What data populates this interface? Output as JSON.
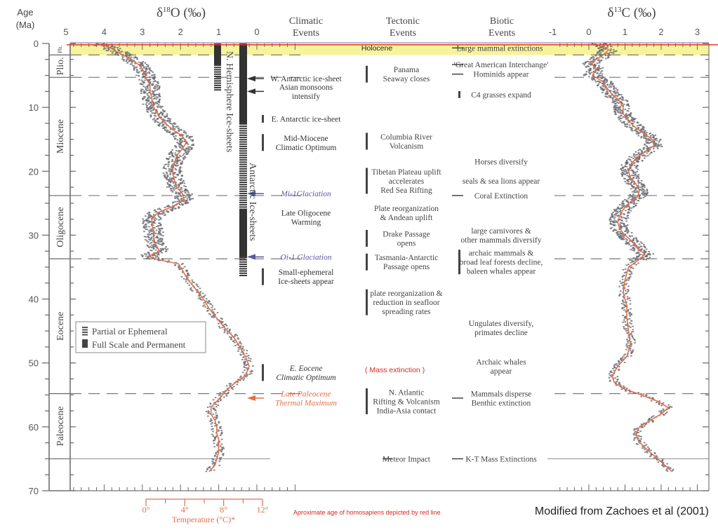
{
  "chart_data": {
    "type": "line",
    "title": "",
    "y_axis": {
      "label_line1": "Age",
      "label_line2": "(Ma)",
      "range": [
        0,
        70
      ],
      "ticks": [
        "0",
        "10",
        "20",
        "30",
        "40",
        "50",
        "60",
        "70"
      ],
      "tick_values": [
        0,
        10,
        20,
        30,
        40,
        50,
        60,
        70
      ]
    },
    "epochs": [
      {
        "name": "Plt.",
        "start": 0,
        "end": 1.8
      },
      {
        "name": "Plio.",
        "start": 1.8,
        "end": 5.3
      },
      {
        "name": "Miocene",
        "start": 5.3,
        "end": 23.8
      },
      {
        "name": "Oligocene",
        "start": 23.8,
        "end": 33.7
      },
      {
        "name": "Eocene",
        "start": 33.7,
        "end": 54.8
      },
      {
        "name": "Paleocene",
        "start": 54.8,
        "end": 65
      },
      {
        "name": "",
        "start": 65,
        "end": 70
      }
    ],
    "boundaries_dashed": [
      1.8,
      5.3,
      23.8,
      33.7,
      54.8
    ],
    "boundary_solid": 65,
    "holocene": {
      "label": "Holocene",
      "color": "#f3ef7a"
    },
    "d18O": {
      "title": "δ18O (‰)",
      "title_main": "δ",
      "title_sup": "18",
      "title_rest": "O (‰)",
      "range": [
        5,
        0
      ],
      "ticks": [
        "5",
        "4",
        "3",
        "2",
        "1",
        "0"
      ],
      "tick_values": [
        5,
        4,
        3,
        2,
        1,
        0
      ],
      "smoothed": [
        {
          "age": 0,
          "v": 4.2
        },
        {
          "age": 0.5,
          "v": 3.9
        },
        {
          "age": 1.5,
          "v": 3.6
        },
        {
          "age": 2.5,
          "v": 3.3
        },
        {
          "age": 3.5,
          "v": 3.05
        },
        {
          "age": 4.5,
          "v": 2.95
        },
        {
          "age": 5.5,
          "v": 2.9
        },
        {
          "age": 6.5,
          "v": 2.8
        },
        {
          "age": 7.5,
          "v": 2.8
        },
        {
          "age": 8.5,
          "v": 2.75
        },
        {
          "age": 9.5,
          "v": 2.75
        },
        {
          "age": 10.5,
          "v": 2.65
        },
        {
          "age": 11.5,
          "v": 2.55
        },
        {
          "age": 12.5,
          "v": 2.4
        },
        {
          "age": 13.5,
          "v": 2.2
        },
        {
          "age": 14.5,
          "v": 1.95
        },
        {
          "age": 15.5,
          "v": 1.85
        },
        {
          "age": 16.5,
          "v": 1.95
        },
        {
          "age": 17.5,
          "v": 2.1
        },
        {
          "age": 18.5,
          "v": 2.15
        },
        {
          "age": 19.5,
          "v": 2.2
        },
        {
          "age": 20.5,
          "v": 2.2
        },
        {
          "age": 21.5,
          "v": 2.15
        },
        {
          "age": 22.5,
          "v": 2.1
        },
        {
          "age": 23.5,
          "v": 1.95
        },
        {
          "age": 24.5,
          "v": 1.9
        },
        {
          "age": 25.5,
          "v": 2.2
        },
        {
          "age": 26.5,
          "v": 2.6
        },
        {
          "age": 27.5,
          "v": 2.75
        },
        {
          "age": 28.5,
          "v": 2.75
        },
        {
          "age": 29.5,
          "v": 2.7
        },
        {
          "age": 30.5,
          "v": 2.7
        },
        {
          "age": 31.5,
          "v": 2.65
        },
        {
          "age": 32.5,
          "v": 2.55
        },
        {
          "age": 33.3,
          "v": 2.85
        },
        {
          "age": 33.8,
          "v": 2.6
        },
        {
          "age": 34.5,
          "v": 2.05
        },
        {
          "age": 35.5,
          "v": 1.95
        },
        {
          "age": 37,
          "v": 1.8
        },
        {
          "age": 38.5,
          "v": 1.6
        },
        {
          "age": 40,
          "v": 1.4
        },
        {
          "age": 41.5,
          "v": 1.25
        },
        {
          "age": 43,
          "v": 1.05
        },
        {
          "age": 44.5,
          "v": 0.85
        },
        {
          "age": 46,
          "v": 0.6
        },
        {
          "age": 47.5,
          "v": 0.45
        },
        {
          "age": 49,
          "v": 0.3
        },
        {
          "age": 50.5,
          "v": 0.2
        },
        {
          "age": 52,
          "v": 0.3
        },
        {
          "age": 53,
          "v": 0.55
        },
        {
          "age": 54,
          "v": 0.75
        },
        {
          "age": 55,
          "v": 0.9
        },
        {
          "age": 56,
          "v": 1.05
        },
        {
          "age": 57,
          "v": 1.2
        },
        {
          "age": 58,
          "v": 1.2
        },
        {
          "age": 59,
          "v": 1.1
        },
        {
          "age": 60,
          "v": 1.05
        },
        {
          "age": 61,
          "v": 1.05
        },
        {
          "age": 62,
          "v": 1.0
        },
        {
          "age": 63,
          "v": 1.0
        },
        {
          "age": 64,
          "v": 1.0
        },
        {
          "age": 65,
          "v": 1.05
        },
        {
          "age": 66,
          "v": 1.1
        },
        {
          "age": 67,
          "v": 1.25
        }
      ],
      "scatter_spread": 0.25
    },
    "temperature_axis": {
      "label": "Temperature (°C)*",
      "ticks": [
        "0°",
        "4°",
        "8°",
        "12°"
      ],
      "tick_values": [
        0,
        4,
        8,
        12
      ],
      "color": "#e0704a"
    },
    "d13C": {
      "title_main": "δ",
      "title_sup": "13",
      "title_rest": "C (‰)",
      "range": [
        -1,
        3
      ],
      "ticks": [
        "-1",
        "0",
        "1",
        "2",
        "3"
      ],
      "tick_values": [
        -1,
        0,
        1,
        2,
        3
      ],
      "smoothed": [
        {
          "age": 0,
          "v": 0.3
        },
        {
          "age": 1,
          "v": 0.55
        },
        {
          "age": 2,
          "v": 0.35
        },
        {
          "age": 3,
          "v": 0.05
        },
        {
          "age": 4,
          "v": 0.2
        },
        {
          "age": 5,
          "v": 0.1
        },
        {
          "age": 6,
          "v": 0.4
        },
        {
          "age": 7,
          "v": 0.5
        },
        {
          "age": 8,
          "v": 0.65
        },
        {
          "age": 9,
          "v": 0.85
        },
        {
          "age": 10,
          "v": 0.95
        },
        {
          "age": 11,
          "v": 0.95
        },
        {
          "age": 12,
          "v": 1.1
        },
        {
          "age": 13,
          "v": 1.25
        },
        {
          "age": 14,
          "v": 1.5
        },
        {
          "age": 15,
          "v": 1.75
        },
        {
          "age": 16,
          "v": 1.8
        },
        {
          "age": 17,
          "v": 1.55
        },
        {
          "age": 18,
          "v": 1.3
        },
        {
          "age": 19,
          "v": 1.15
        },
        {
          "age": 20,
          "v": 1.1
        },
        {
          "age": 21,
          "v": 1.15
        },
        {
          "age": 22,
          "v": 1.3
        },
        {
          "age": 23,
          "v": 1.4
        },
        {
          "age": 24,
          "v": 1.35
        },
        {
          "age": 25,
          "v": 1.1
        },
        {
          "age": 26,
          "v": 0.95
        },
        {
          "age": 27,
          "v": 0.85
        },
        {
          "age": 28,
          "v": 0.8
        },
        {
          "age": 29,
          "v": 0.85
        },
        {
          "age": 30,
          "v": 1.0
        },
        {
          "age": 31,
          "v": 1.2
        },
        {
          "age": 32,
          "v": 1.35
        },
        {
          "age": 33,
          "v": 1.55
        },
        {
          "age": 34,
          "v": 1.35
        },
        {
          "age": 35,
          "v": 1.1
        },
        {
          "age": 37,
          "v": 1.0
        },
        {
          "age": 39,
          "v": 0.95
        },
        {
          "age": 41,
          "v": 1.05
        },
        {
          "age": 43,
          "v": 1.05
        },
        {
          "age": 45,
          "v": 1.1
        },
        {
          "age": 47,
          "v": 1.15
        },
        {
          "age": 49,
          "v": 1.05
        },
        {
          "age": 50.5,
          "v": 0.8
        },
        {
          "age": 52,
          "v": 0.65
        },
        {
          "age": 53,
          "v": 0.7
        },
        {
          "age": 54,
          "v": 0.95
        },
        {
          "age": 55,
          "v": 1.45
        },
        {
          "age": 56,
          "v": 1.9
        },
        {
          "age": 57,
          "v": 2.2
        },
        {
          "age": 58,
          "v": 2.0
        },
        {
          "age": 59,
          "v": 1.7
        },
        {
          "age": 60,
          "v": 1.4
        },
        {
          "age": 61,
          "v": 1.3
        },
        {
          "age": 62,
          "v": 1.35
        },
        {
          "age": 63,
          "v": 1.5
        },
        {
          "age": 64,
          "v": 1.7
        },
        {
          "age": 65,
          "v": 1.9
        },
        {
          "age": 66,
          "v": 2.1
        },
        {
          "age": 67,
          "v": 2.3
        }
      ],
      "scatter_spread": 0.25
    },
    "ice_sheets": {
      "n_hemisphere": {
        "label": "N. Hemisphere Ice-sheets",
        "full": [
          [
            0,
            3.3
          ]
        ],
        "partial": [
          [
            3.3,
            7.5
          ]
        ]
      },
      "antarctic": {
        "label": "Antarctic Ice-sheets",
        "full": [
          [
            0,
            12.5
          ],
          [
            26,
            33.4
          ]
        ],
        "partial": [
          [
            12.5,
            26
          ],
          [
            33.4,
            36.5
          ]
        ]
      }
    },
    "legend": {
      "partial": "Partial or Ephemeral",
      "full": "Full Scale and Permanent",
      "position": "left-middle"
    },
    "column_headers": {
      "climatic": [
        "Climatic",
        "Events"
      ],
      "tectonic": [
        "Tectonic",
        "Events"
      ],
      "biotic": [
        "Biotic",
        "Events"
      ]
    },
    "climatic_events": [
      {
        "lines": [
          "W. Antarctic ice-sheet"
        ],
        "age": 5.5,
        "marker": "arrow",
        "color": "#333333",
        "style": "normal"
      },
      {
        "lines": [
          "Asian monsoons",
          "intensify"
        ],
        "age": 7.5,
        "marker": "arrow",
        "color": "#333333",
        "style": "normal"
      },
      {
        "lines": [
          "E. Antarctic ice-sheet"
        ],
        "age": 11.8,
        "marker": "bar",
        "color": "#333333",
        "style": "normal"
      },
      {
        "lines": [
          "Mid-Miocene",
          "Climatic Optimum"
        ],
        "age": 15.5,
        "marker": "bar",
        "color": "#333333",
        "style": "normal"
      },
      {
        "lines": [
          "Mi-1Glaciation"
        ],
        "age": 23.5,
        "marker": "arrow",
        "color": "#5a5a9e",
        "style": "italic"
      },
      {
        "lines": [
          "Late Oligocene",
          "Warming"
        ],
        "age": 27.2,
        "marker": "none",
        "color": "#333333",
        "style": "normal"
      },
      {
        "lines": [
          "Oi-1 Glaciation"
        ],
        "age": 33.4,
        "marker": "arrow",
        "color": "#5a5a9e",
        "style": "italic"
      },
      {
        "lines": [
          "Small-ephemeral",
          "Ice-sheets appear"
        ],
        "age": 36.5,
        "marker": "bar",
        "color": "#333333",
        "style": "normal"
      },
      {
        "lines": [
          "E. Eocene",
          "Climatic Optimum"
        ],
        "age": 51.5,
        "marker": "bar",
        "color": "#333333",
        "style": "italic"
      },
      {
        "lines": [
          "Late Paleocene",
          "Thermal Maximum"
        ],
        "age": 55.5,
        "marker": "arrow",
        "color": "#e0704a",
        "style": "italic"
      }
    ],
    "tectonic_events": [
      {
        "lines": [
          "Panama",
          "Seaway closes"
        ],
        "age": 4.8,
        "marker": "bar"
      },
      {
        "lines": [
          "Columbia River",
          "Volcanism"
        ],
        "age": 15.3,
        "marker": "bar"
      },
      {
        "lines": [
          "Tibetan Plateau uplift",
          "accelerates",
          "Red Sea Rifting"
        ],
        "age": 21.5,
        "marker": "bar"
      },
      {
        "lines": [
          "Plate reorganization",
          "& Andean uplift"
        ],
        "age": 26.5,
        "marker": "none"
      },
      {
        "lines": [
          "Drake Passage",
          "opens"
        ],
        "age": 30.5,
        "marker": "bar"
      },
      {
        "lines": [
          "Tasmania-Antarctic",
          "Passage opens"
        ],
        "age": 34.2,
        "marker": "bar"
      },
      {
        "lines": [
          "plate reorganization &",
          "reduction in seafloor",
          "spreading rates"
        ],
        "age": 40.5,
        "marker": "bar"
      },
      {
        "lines": [
          "N. Atlantic",
          "Rifting & Volcanism",
          "India-Asia contact"
        ],
        "age": 56.0,
        "marker": "bar"
      },
      {
        "lines": [
          "Meteor Impact"
        ],
        "age": 65.0,
        "marker": "dash"
      }
    ],
    "mass_extinction_note": {
      "text": "( Mass extinction )",
      "color": "#d62a1e"
    },
    "biotic_events": [
      {
        "lines": [
          "Large mammal extinctions"
        ],
        "age": 0.7,
        "marker": "dash"
      },
      {
        "lines": [
          "'Great American Interchange'"
        ],
        "age": 3.3,
        "marker": "dash"
      },
      {
        "lines": [
          "Hominids appear"
        ],
        "age": 4.8,
        "marker": "dash"
      },
      {
        "lines": [
          "C4 grasses expand"
        ],
        "age": 8.0,
        "marker": "bar"
      },
      {
        "lines": [
          "Horses diversify"
        ],
        "age": 18.5,
        "marker": "none"
      },
      {
        "lines": [
          "seals & sea lions appear"
        ],
        "age": 21.5,
        "marker": "none"
      },
      {
        "lines": [
          "Coral Extinction"
        ],
        "age": 23.8,
        "marker": "dash"
      },
      {
        "lines": [
          "large carnivores &",
          "other mammals diversify"
        ],
        "age": 30.0,
        "marker": "none"
      },
      {
        "lines": [
          "archaic mammals &",
          "broad leaf forests decline,",
          "baleen whales appear"
        ],
        "age": 34.2,
        "marker": "bar"
      },
      {
        "lines": [
          "Ungulates diversify,",
          "primates decline"
        ],
        "age": 44.5,
        "marker": "none"
      },
      {
        "lines": [
          "Archaic whales",
          "appear"
        ],
        "age": 50.5,
        "marker": "none"
      },
      {
        "lines": [
          "Mammals disperse",
          "Benthic extinction"
        ],
        "age": 55.5,
        "marker": "dash"
      },
      {
        "lines": [
          "K-T Mass Extinctions"
        ],
        "age": 65.0,
        "marker": "dash"
      }
    ],
    "homo_sapiens_line": {
      "age": 0.2,
      "color": "#e03a2a"
    },
    "footnote_red": "Aproximate age of homosapiens depicted by red line",
    "credit": "Modified from Zachoes et al (2001)"
  }
}
